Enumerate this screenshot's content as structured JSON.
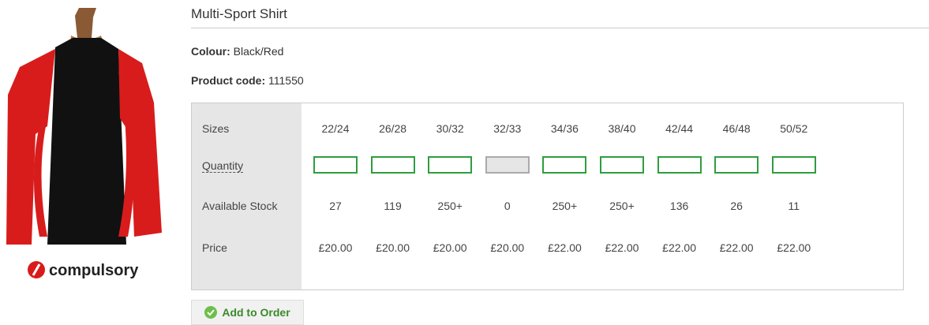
{
  "product": {
    "title": "Multi-Sport Shirt",
    "brand": "compulsory",
    "colour_label": "Colour:",
    "colour": "Black/Red",
    "code_label": "Product code:",
    "code": "111550"
  },
  "table": {
    "row_labels": [
      "Sizes",
      "Quantity",
      "Available Stock",
      "Price"
    ],
    "sizes": [
      "22/24",
      "26/28",
      "30/32",
      "32/33",
      "34/36",
      "38/40",
      "42/44",
      "46/48",
      "50/52"
    ],
    "quantity_enabled": [
      true,
      true,
      true,
      false,
      true,
      true,
      true,
      true,
      true
    ],
    "stock": [
      "27",
      "119",
      "250+",
      "0",
      "250+",
      "250+",
      "136",
      "26",
      "11"
    ],
    "prices": [
      "£20.00",
      "£20.00",
      "£20.00",
      "£20.00",
      "£22.00",
      "£22.00",
      "£22.00",
      "£22.00",
      "£22.00"
    ]
  },
  "button": "Add to Order"
}
